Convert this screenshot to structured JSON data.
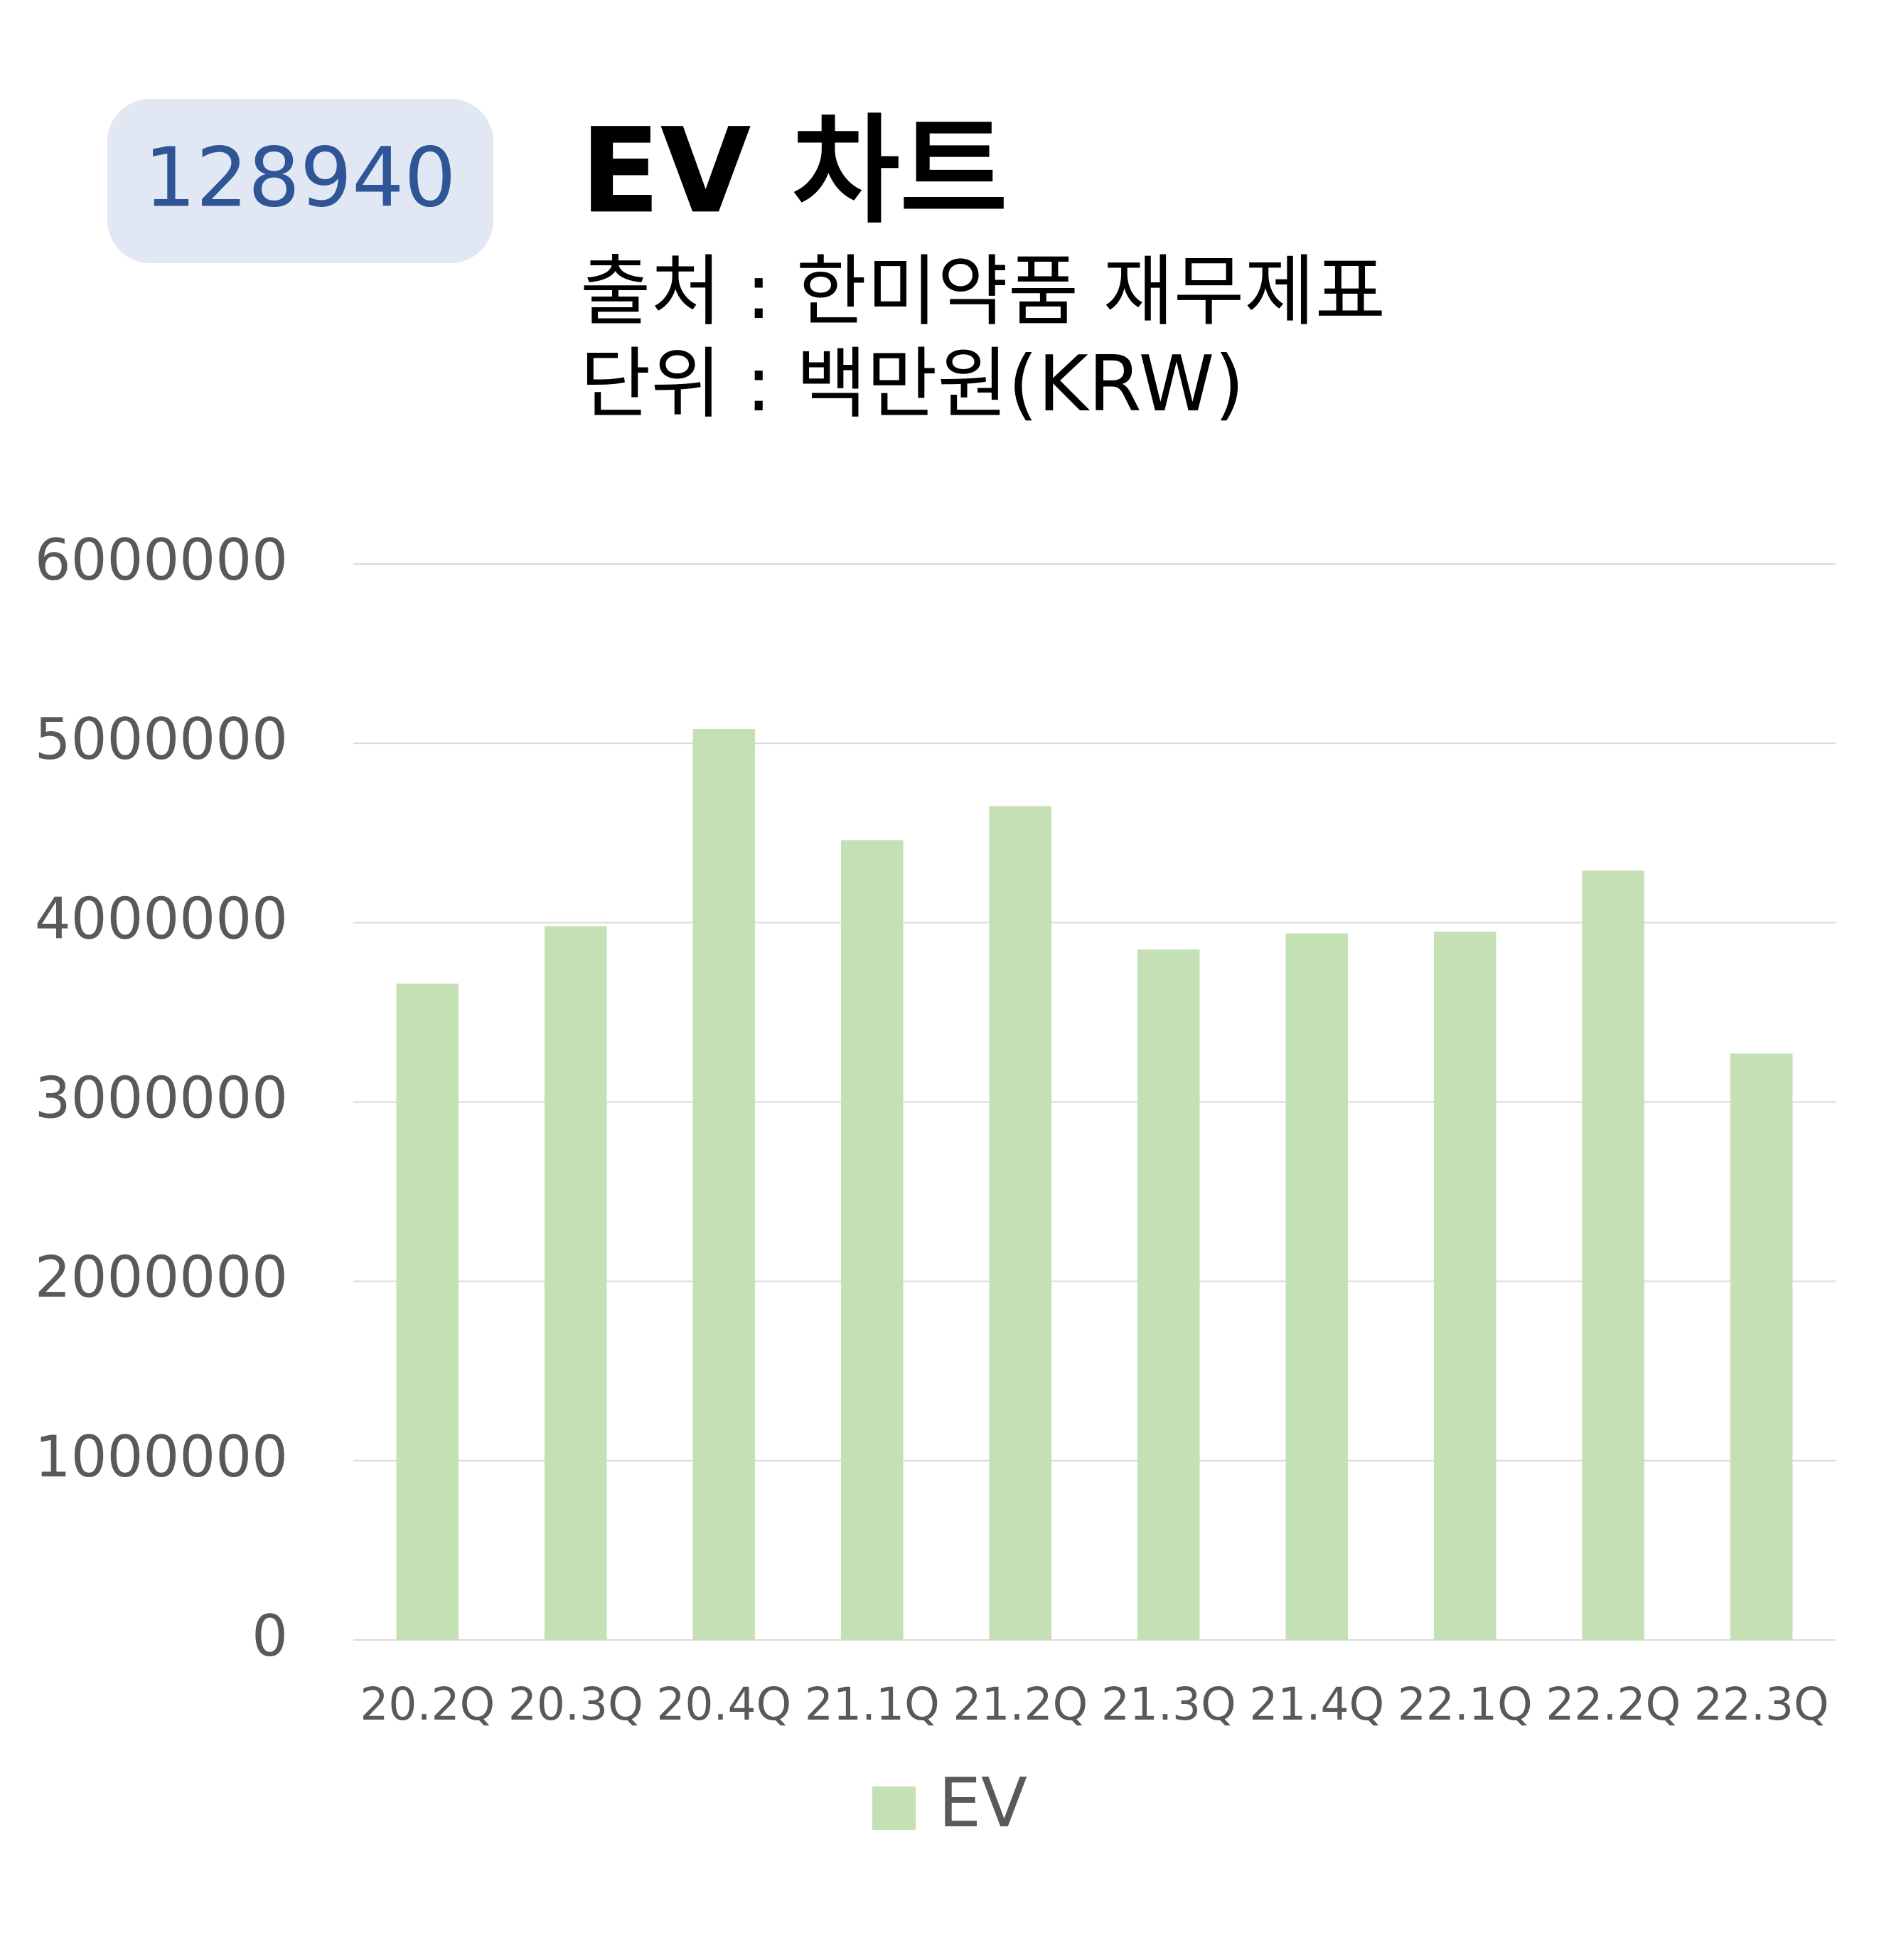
{
  "badge": "128940",
  "chart_data": {
    "type": "bar",
    "title": "EV 차트",
    "subtitle": [
      "출처 : 한미약품 재무제표",
      "단위 : 백만원(KRW)"
    ],
    "categories": [
      "20.2Q",
      "20.3Q",
      "20.4Q",
      "21.1Q",
      "21.2Q",
      "21.3Q",
      "21.4Q",
      "22.1Q",
      "22.2Q",
      "22.3Q"
    ],
    "series": [
      {
        "name": "EV",
        "color": "#c5e0b4",
        "values": [
          3660000,
          3980000,
          5080000,
          4460000,
          4650000,
          3850000,
          3940000,
          3950000,
          4290000,
          3270000
        ]
      }
    ],
    "ylim": [
      0,
      6000000
    ],
    "yticks": [
      0,
      1000000,
      2000000,
      3000000,
      4000000,
      5000000,
      6000000
    ],
    "grid": true,
    "legend": "bottom"
  }
}
